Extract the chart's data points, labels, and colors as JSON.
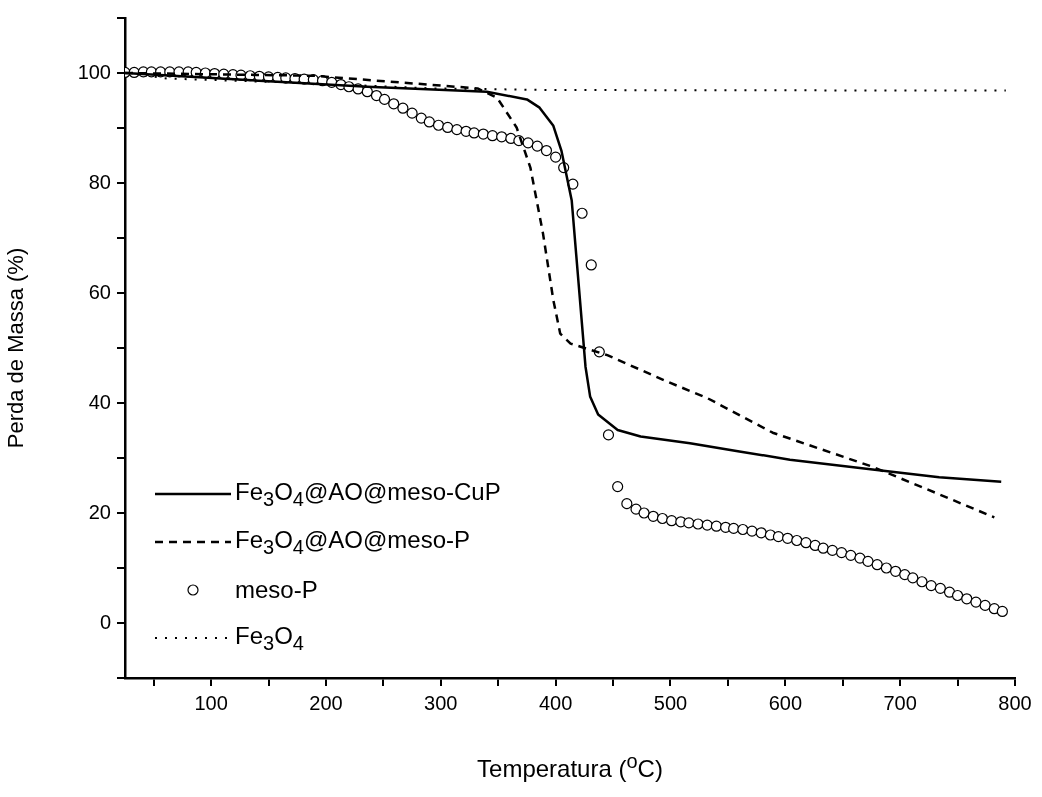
{
  "chart_data": {
    "type": "line",
    "xlabel": "Temperatura ($^{o}$C)",
    "ylabel": "Perda de Massa (%)",
    "xlim": [
      25,
      800
    ],
    "ylim": [
      -10,
      110
    ],
    "xticks": [
      {
        "value": 50,
        "label": null
      },
      100,
      {
        "value": 150,
        "label": null
      },
      200,
      {
        "value": 250,
        "label": null
      },
      300,
      {
        "value": 350,
        "label": null
      },
      400,
      {
        "value": 450,
        "label": null
      },
      500,
      {
        "value": 550,
        "label": null
      },
      600,
      {
        "value": 650,
        "label": null
      },
      700,
      {
        "value": 750,
        "label": null
      },
      800
    ],
    "yticks": [
      {
        "value": -10,
        "label": null
      },
      0,
      {
        "value": 10,
        "label": null
      },
      20,
      {
        "value": 30,
        "label": null
      },
      40,
      {
        "value": 50,
        "label": null
      },
      60,
      {
        "value": 70,
        "label": null
      },
      80,
      {
        "value": 90,
        "label": null
      },
      100,
      {
        "value": 110,
        "label": null
      }
    ],
    "grid": false,
    "legend": "bottom left",
    "series": [
      {
        "name": "Fe$_{3}$O$_{4}$@AO@meso-CuP",
        "color": "#000000",
        "line_style": "solid",
        "marker": "none",
        "x": [
          25,
          150,
          236,
          340,
          375,
          386,
          398,
          405,
          414,
          420,
          426,
          430,
          437,
          454,
          474,
          517,
          560,
          604,
          676,
          734,
          788
        ],
        "values": [
          100,
          98.5,
          97.5,
          96.6,
          95.2,
          93.7,
          90.4,
          85.9,
          76.8,
          61.7,
          46.6,
          41.2,
          37.9,
          35.1,
          33.9,
          32.7,
          31.2,
          29.7,
          27.9,
          26.5,
          25.7
        ]
      },
      {
        "name": "Fe$_{3}$O$_{4}$@AO@meso-P",
        "color": "#000000",
        "line_style": "dashed",
        "marker": "none",
        "x": [
          25,
          189,
          332,
          349,
          366,
          378,
          389,
          398,
          404,
          413,
          445,
          497,
          532,
          589,
          676,
          734,
          782
        ],
        "values": [
          100,
          99.5,
          97.2,
          95.5,
          90.1,
          82.8,
          70.8,
          58.7,
          52.6,
          50.8,
          48.7,
          43.9,
          40.9,
          34.6,
          28.4,
          23.4,
          19.2
        ]
      },
      {
        "name": "meso-P",
        "type": "scatter",
        "color": "#000000",
        "marker": "circle",
        "x": [
          25,
          33,
          41,
          48,
          56,
          64,
          72,
          80,
          87,
          95,
          103,
          111,
          119,
          126,
          134,
          142,
          150,
          158,
          165,
          173,
          181,
          189,
          197,
          205,
          213,
          220,
          228,
          236,
          244,
          251,
          259,
          267,
          275,
          283,
          290,
          298,
          306,
          314,
          322,
          329,
          337,
          345,
          353,
          361,
          368,
          376,
          384,
          392,
          400,
          407,
          415,
          423,
          431,
          438,
          446,
          454,
          462,
          470,
          477,
          485,
          493,
          501,
          509,
          516,
          524,
          532,
          540,
          548,
          555,
          563,
          571,
          579,
          587,
          594,
          602,
          610,
          618,
          626,
          633,
          641,
          649,
          657,
          665,
          672,
          680,
          688,
          696,
          704,
          711,
          719,
          727,
          735,
          743,
          750,
          758,
          766,
          774,
          782,
          789
        ],
        "values": [
          100.1,
          100.1,
          100.2,
          100.2,
          100.2,
          100.2,
          100.2,
          100.2,
          100.1,
          100,
          99.9,
          99.8,
          99.7,
          99.6,
          99.5,
          99.4,
          99.3,
          99.2,
          99.1,
          99,
          98.9,
          98.8,
          98.6,
          98.3,
          97.9,
          97.5,
          97.1,
          96.6,
          95.9,
          95.2,
          94.4,
          93.6,
          92.7,
          91.8,
          91.1,
          90.5,
          90.1,
          89.7,
          89.4,
          89.1,
          88.9,
          88.6,
          88.4,
          88.1,
          87.7,
          87.3,
          86.7,
          85.9,
          84.7,
          82.8,
          79.8,
          74.5,
          65.1,
          49.3,
          34.2,
          24.8,
          21.7,
          20.7,
          20,
          19.4,
          19,
          18.6,
          18.4,
          18.2,
          18,
          17.8,
          17.6,
          17.4,
          17.2,
          17,
          16.7,
          16.4,
          16,
          15.7,
          15.4,
          15,
          14.6,
          14.1,
          13.6,
          13.2,
          12.8,
          12.3,
          11.8,
          11.2,
          10.6,
          10,
          9.4,
          8.8,
          8.2,
          7.5,
          6.8,
          6.3,
          5.6,
          5,
          4.4,
          3.8,
          3.2,
          2.6,
          2.1
        ]
      },
      {
        "name": "Fe$_{3}$O$_{4}$",
        "color": "#000000",
        "line_style": "dotted",
        "marker": "none",
        "x": [
          25,
          62,
          178,
          293,
          400,
          792
        ],
        "values": [
          100,
          99,
          98.2,
          97.2,
          96.9,
          96.8
        ]
      }
    ]
  }
}
